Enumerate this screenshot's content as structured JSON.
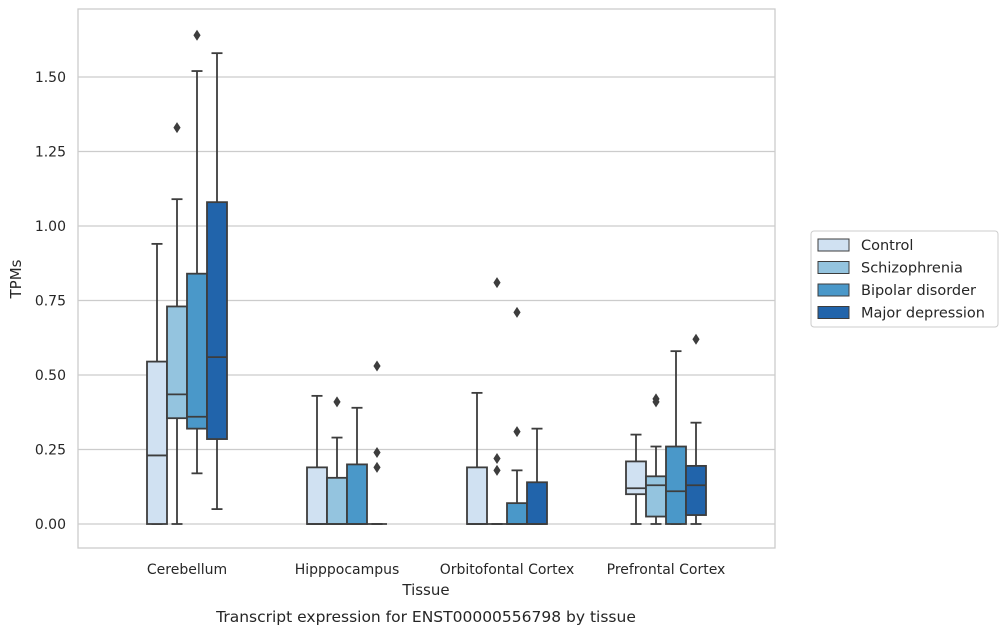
{
  "caption": "Transcript expression for ENST00000556798 by tissue",
  "chart_data": {
    "type": "boxplot",
    "xlabel": "Tissue",
    "ylabel": "TPMs",
    "ylim": [
      -0.08,
      1.73
    ],
    "yticks": [
      "0.00",
      "0.25",
      "0.50",
      "0.75",
      "1.00",
      "1.25",
      "1.50"
    ],
    "ytick_values": [
      0,
      0.25,
      0.5,
      0.75,
      1.0,
      1.25,
      1.5
    ],
    "grid": true,
    "legend_position": "right",
    "categories": [
      "Cerebellum",
      "Hipppocampus",
      "Orbitofontal Cortex",
      "Prefrontal Cortex"
    ],
    "series": [
      {
        "name": "Control",
        "color": "#d0e1f2",
        "boxes": [
          {
            "whislo": 0,
            "q1": 0,
            "med": 0.23,
            "q3": 0.545,
            "whishi": 0.94,
            "fliers": []
          },
          {
            "whislo": 0,
            "q1": 0,
            "med": 0,
            "q3": 0.19,
            "whishi": 0.43,
            "fliers": []
          },
          {
            "whislo": 0,
            "q1": 0,
            "med": 0,
            "q3": 0.19,
            "whishi": 0.44,
            "fliers": []
          },
          {
            "whislo": 0,
            "q1": 0.1,
            "med": 0.12,
            "q3": 0.21,
            "whishi": 0.3,
            "fliers": []
          }
        ]
      },
      {
        "name": "Schizophrenia",
        "color": "#94c4df",
        "boxes": [
          {
            "whislo": 0,
            "q1": 0.355,
            "med": 0.435,
            "q3": 0.73,
            "whishi": 1.09,
            "fliers": [
              1.33
            ]
          },
          {
            "whislo": 0,
            "q1": 0,
            "med": 0,
            "q3": 0.155,
            "whishi": 0.29,
            "fliers": [
              0.41
            ]
          },
          {
            "whislo": 0,
            "q1": 0,
            "med": 0,
            "q3": 0,
            "whishi": 0,
            "fliers": [
              0.81,
              0.22,
              0.18
            ]
          },
          {
            "whislo": 0,
            "q1": 0.025,
            "med": 0.13,
            "q3": 0.16,
            "whishi": 0.26,
            "fliers": [
              0.42,
              0.41
            ]
          }
        ]
      },
      {
        "name": "Bipolar disorder",
        "color": "#4a98c9",
        "boxes": [
          {
            "whislo": 0.17,
            "q1": 0.32,
            "med": 0.36,
            "q3": 0.84,
            "whishi": 1.52,
            "fliers": [
              1.64
            ]
          },
          {
            "whislo": 0,
            "q1": 0,
            "med": 0,
            "q3": 0.2,
            "whishi": 0.39,
            "fliers": []
          },
          {
            "whislo": 0,
            "q1": 0,
            "med": 0,
            "q3": 0.07,
            "whishi": 0.18,
            "fliers": [
              0.71,
              0.31
            ]
          },
          {
            "whislo": 0,
            "q1": 0,
            "med": 0.11,
            "q3": 0.26,
            "whishi": 0.58,
            "fliers": []
          }
        ]
      },
      {
        "name": "Major depression",
        "color": "#2164ab",
        "boxes": [
          {
            "whislo": 0.05,
            "q1": 0.285,
            "med": 0.56,
            "q3": 1.08,
            "whishi": 1.58,
            "fliers": []
          },
          {
            "whislo": 0,
            "q1": 0,
            "med": 0,
            "q3": 0,
            "whishi": 0,
            "fliers": [
              0.53,
              0.24,
              0.19
            ]
          },
          {
            "whislo": 0,
            "q1": 0,
            "med": 0,
            "q3": 0.14,
            "whishi": 0.32,
            "fliers": []
          },
          {
            "whislo": 0,
            "q1": 0.03,
            "med": 0.13,
            "q3": 0.195,
            "whishi": 0.34,
            "fliers": [
              0.62
            ]
          }
        ]
      }
    ]
  }
}
